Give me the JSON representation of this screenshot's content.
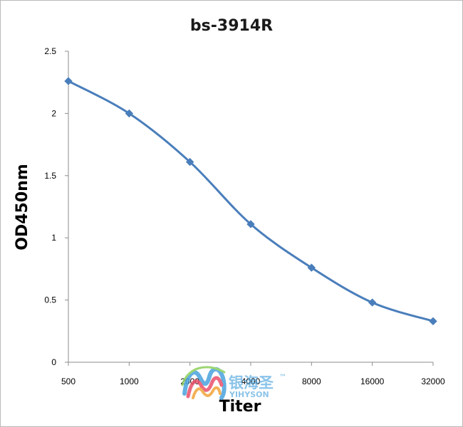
{
  "chart_data": {
    "type": "line",
    "title": "bs-3914R",
    "xlabel": "Titer",
    "ylabel": "OD450nm",
    "categories": [
      "500",
      "1000",
      "2000",
      "4000",
      "8000",
      "16000",
      "32000"
    ],
    "series": [
      {
        "values": [
          2.26,
          2.0,
          1.61,
          1.11,
          0.76,
          0.48,
          0.33
        ]
      }
    ],
    "ylim": [
      0,
      2.5
    ],
    "yticks": [
      "0",
      "0.5",
      "1",
      "1.5",
      "2",
      "2.5"
    ],
    "grid": false,
    "legend": "none",
    "line_color": "#4a7ebb",
    "smooth": true
  },
  "watermark": {
    "name_cn": "银海圣",
    "tm": "™",
    "name_en": "YIHYSON"
  }
}
